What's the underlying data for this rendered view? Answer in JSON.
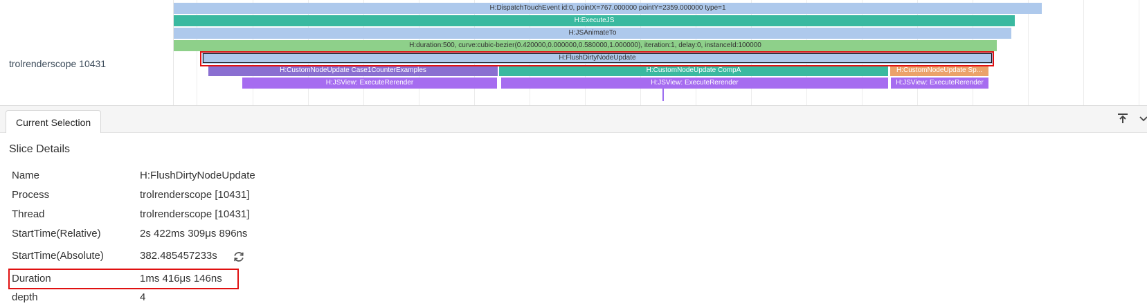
{
  "timeline": {
    "thread_label": "trolrenderscope 10431",
    "slices": [
      {
        "label": "H:DispatchTouchEvent id:0, pointX=767.000000 pointY=2359.000000 type=1"
      },
      {
        "label": "H:ExecuteJS"
      },
      {
        "label": "H:JSAnimateTo"
      },
      {
        "label": "H:duration:500, curve:cubic-bezier(0.420000,0.000000,0.580000,1.000000), iteration:1, delay:0, instanceId:100000"
      },
      {
        "label": "H:FlushDirtyNodeUpdate"
      },
      {
        "label": "H:CustomNodeUpdate Case1CounterExamples"
      },
      {
        "label": "H:CustomNodeUpdate CompA"
      },
      {
        "label": "H:CustomNodeUpdate Sp..."
      },
      {
        "label": "H:JSView: ExecuteRerender"
      },
      {
        "label": "H:JSView: ExecuteRerender"
      },
      {
        "label": "H:JSView: ExecuteRerender"
      }
    ]
  },
  "panel": {
    "tab_label": "Current Selection",
    "section_title": "Slice Details",
    "details": [
      {
        "key": "Name",
        "value": "H:FlushDirtyNodeUpdate"
      },
      {
        "key": "Process",
        "value": "trolrenderscope [10431]"
      },
      {
        "key": "Thread",
        "value": "trolrenderscope [10431]"
      },
      {
        "key": "StartTime(Relative)",
        "value": "2s 422ms 309μs 896ns"
      },
      {
        "key": "StartTime(Absolute)",
        "value": "382.485457233s"
      },
      {
        "key": "Duration",
        "value": "1ms 416μs 146ns"
      },
      {
        "key": "depth",
        "value": "4"
      }
    ]
  },
  "icons": {
    "pin": "pin-top-icon",
    "collapse": "chevron-down-icon",
    "refresh": "refresh-icon"
  },
  "colors": {
    "highlight": "#e01010",
    "blue_slice": "#aec9ec",
    "teal_slice": "#3ab9a0",
    "green_slice": "#8ed08a",
    "violet_slice": "#8a6fd1",
    "purple_slice": "#a66cf0",
    "orange_slice": "#eba26a"
  }
}
